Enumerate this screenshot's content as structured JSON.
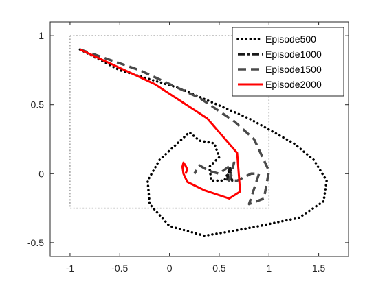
{
  "chart_data": {
    "type": "line",
    "title": "",
    "xlabel": "",
    "ylabel": "",
    "xlim": [
      -1.2,
      1.8
    ],
    "ylim": [
      -0.6,
      1.1
    ],
    "xticks": [
      -1,
      -0.5,
      0,
      0.5,
      1,
      1.5
    ],
    "xtick_labels": [
      "-1",
      "-0.5",
      "0",
      "0.5",
      "1",
      "1.5"
    ],
    "yticks": [
      -0.5,
      0,
      0.5,
      1
    ],
    "ytick_labels": [
      "-0.5",
      "0",
      "0.5",
      "1"
    ],
    "grid": false,
    "legend_position": "top-right",
    "boundary": {
      "x": [
        -1,
        1,
        1,
        -1,
        -1
      ],
      "y": [
        1,
        1,
        -0.25,
        -0.25,
        1
      ],
      "color": "#a0a0a0",
      "style": "dotted"
    },
    "series": [
      {
        "name": "Episode500",
        "color": "#000000",
        "style": "dotted",
        "x": [
          -0.9,
          -0.5,
          0.1,
          0.8,
          1.25,
          1.45,
          1.58,
          1.55,
          1.3,
          0.9,
          0.6,
          0.35,
          0.0,
          -0.2,
          -0.22,
          -0.1,
          0.05,
          0.2,
          0.3,
          0.45,
          0.5,
          0.4,
          0.42,
          0.55,
          0.6
        ],
        "y": [
          0.9,
          0.75,
          0.62,
          0.4,
          0.22,
          0.1,
          -0.05,
          -0.2,
          -0.32,
          -0.38,
          -0.42,
          -0.45,
          -0.38,
          -0.22,
          -0.05,
          0.1,
          0.2,
          0.3,
          0.24,
          0.22,
          0.12,
          0.05,
          -0.05,
          -0.05,
          0.02
        ]
      },
      {
        "name": "Episode1000",
        "color": "#1a1a1a",
        "style": "dashdot",
        "x": [
          0.58,
          0.6,
          0.62,
          0.61,
          0.63,
          0.6
        ],
        "y": [
          -0.05,
          0.05,
          -0.02,
          0.04,
          -0.05,
          0.0
        ]
      },
      {
        "name": "Episode1500",
        "color": "#4a4a4a",
        "style": "dashed",
        "x": [
          -0.9,
          -0.3,
          0.3,
          0.65,
          0.85,
          1.0,
          0.95,
          0.8,
          0.9,
          0.82,
          0.68,
          0.6,
          0.65,
          0.5,
          0.4,
          0.3,
          0.25
        ],
        "y": [
          0.9,
          0.75,
          0.55,
          0.38,
          0.25,
          0.02,
          -0.18,
          -0.22,
          0.0,
          0.0,
          -0.05,
          -0.05,
          0.08,
          0.0,
          0.02,
          0.06,
          0.0
        ]
      },
      {
        "name": "Episode2000",
        "color": "#ff0000",
        "style": "solid",
        "x": [
          -0.9,
          -0.15,
          0.38,
          0.68,
          0.71,
          0.6,
          0.35,
          0.18,
          0.14,
          0.13,
          0.14,
          0.16,
          0.18,
          0.16
        ],
        "y": [
          0.9,
          0.65,
          0.4,
          0.15,
          -0.13,
          -0.18,
          -0.12,
          -0.06,
          0.0,
          0.05,
          0.08,
          0.06,
          0.03,
          0.0
        ]
      }
    ]
  }
}
